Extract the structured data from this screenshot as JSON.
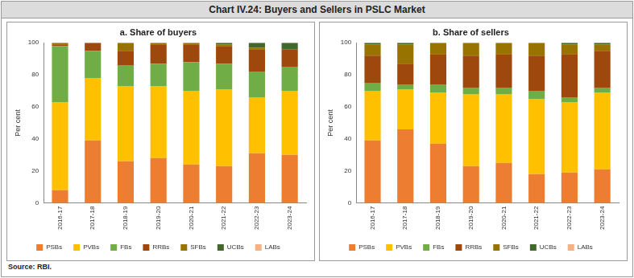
{
  "title": "Chart IV.24: Buyers and Sellers in PSLC Market",
  "source": "Source: RBI.",
  "chart_data": [
    {
      "type": "bar",
      "title": "a. Share of buyers",
      "y_label": "Per cent",
      "categories": [
        "2016-17",
        "2017-18",
        "2018-19",
        "2019-20",
        "2020-21",
        "2021-22",
        "2022-23",
        "2023-24"
      ],
      "series": [
        {
          "name": "PSBs",
          "color": "#ED7D31",
          "values": [
            8,
            39,
            26,
            28,
            24,
            23,
            31,
            30
          ]
        },
        {
          "name": "PVBs",
          "color": "#FFC000",
          "values": [
            55,
            39,
            47,
            45,
            46,
            48,
            35,
            40
          ]
        },
        {
          "name": "FBs",
          "color": "#70AD47",
          "values": [
            35,
            17,
            13,
            14,
            18,
            16,
            16,
            15
          ]
        },
        {
          "name": "RRBs",
          "color": "#9E480E",
          "values": [
            1,
            5,
            9,
            12,
            11,
            11,
            14,
            11
          ]
        },
        {
          "name": "SFBs",
          "color": "#997300",
          "values": [
            1,
            0,
            5,
            1,
            1,
            1,
            1,
            0
          ]
        },
        {
          "name": "UCBs",
          "color": "#43682B",
          "values": [
            0,
            0,
            0,
            0,
            0,
            1,
            3,
            4
          ]
        },
        {
          "name": "LABs",
          "color": "#F4B183",
          "values": [
            0,
            0,
            0,
            0,
            0,
            0,
            0,
            0
          ]
        }
      ],
      "stacked": true,
      "ylim": [
        0,
        100
      ],
      "yticks": [
        0,
        20,
        40,
        60,
        80,
        100
      ],
      "grid": false,
      "legend": "bottom"
    },
    {
      "type": "bar",
      "title": "b. Share of sellers",
      "y_label": "Per cent",
      "categories": [
        "2016-17",
        "2017-18",
        "2018-19",
        "2019-20",
        "2020-21",
        "2021-22",
        "2022-23",
        "2023-24"
      ],
      "series": [
        {
          "name": "PSBs",
          "color": "#ED7D31",
          "values": [
            39,
            46,
            37,
            23,
            25,
            18,
            19,
            21
          ]
        },
        {
          "name": "PVBs",
          "color": "#FFC000",
          "values": [
            31,
            25,
            32,
            45,
            43,
            47,
            44,
            48
          ]
        },
        {
          "name": "FBs",
          "color": "#70AD47",
          "values": [
            5,
            3,
            5,
            4,
            4,
            5,
            3,
            3
          ]
        },
        {
          "name": "RRBs",
          "color": "#9E480E",
          "values": [
            17,
            13,
            19,
            20,
            21,
            22,
            27,
            23
          ]
        },
        {
          "name": "SFBs",
          "color": "#997300",
          "values": [
            7,
            12,
            7,
            8,
            7,
            8,
            6,
            4
          ]
        },
        {
          "name": "UCBs",
          "color": "#43682B",
          "values": [
            1,
            1,
            0,
            0,
            0,
            0,
            1,
            1
          ]
        },
        {
          "name": "LABs",
          "color": "#F4B183",
          "values": [
            0,
            0,
            0,
            0,
            0,
            0,
            0,
            0
          ]
        }
      ],
      "stacked": true,
      "ylim": [
        0,
        100
      ],
      "yticks": [
        0,
        20,
        40,
        60,
        80,
        100
      ],
      "grid": false,
      "legend": "bottom"
    }
  ]
}
